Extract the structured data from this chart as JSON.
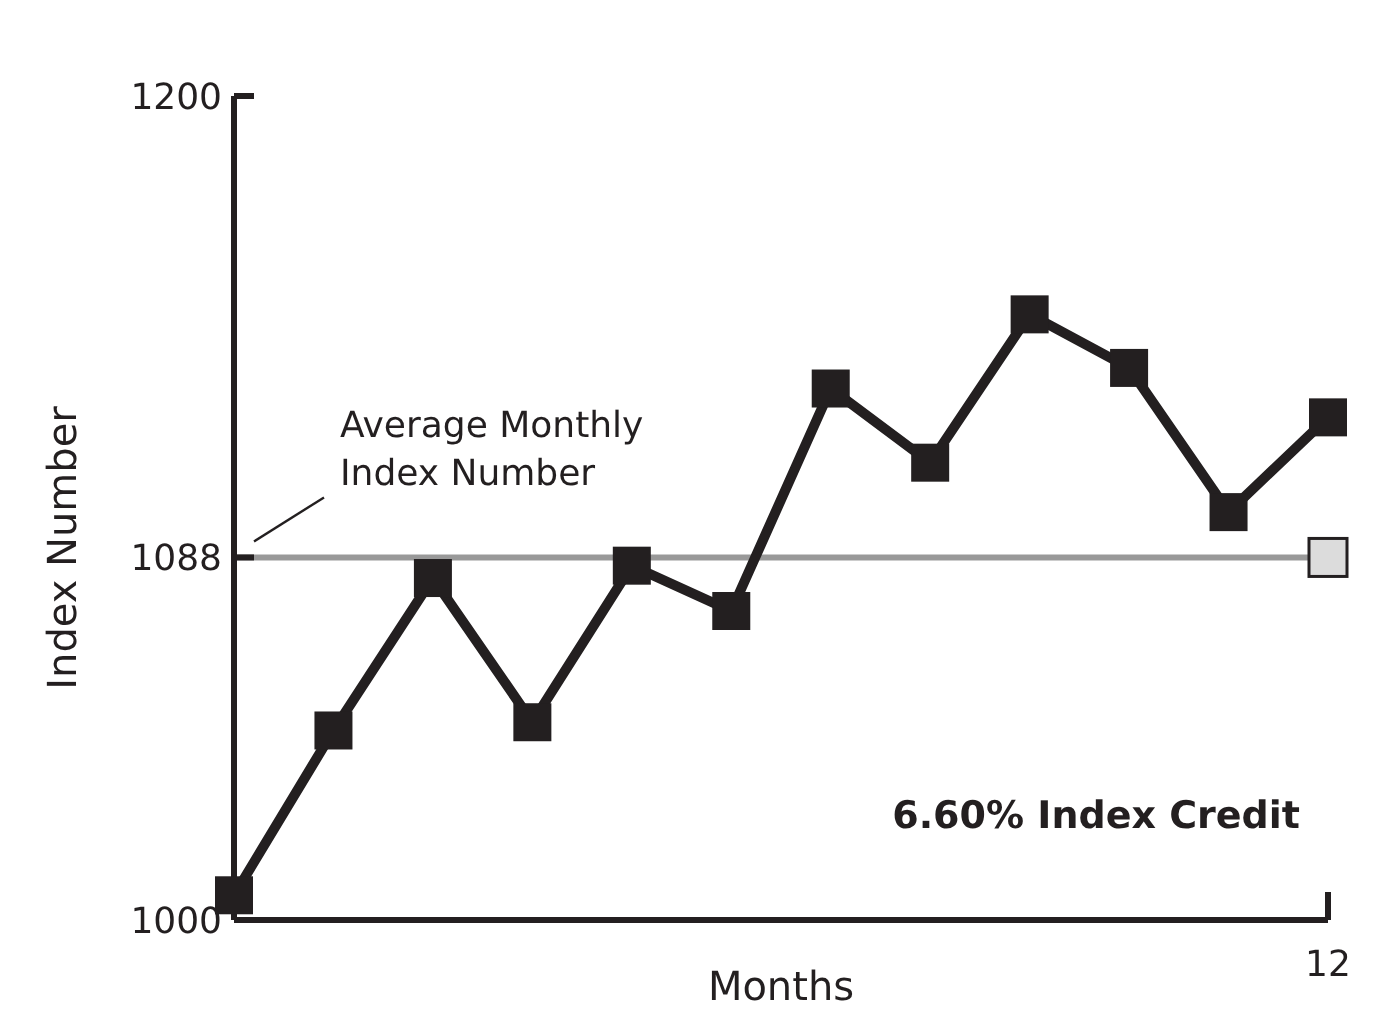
{
  "chart_data": {
    "type": "line",
    "xlabel": "Months",
    "ylabel": "Index Number",
    "categories": [
      null,
      null,
      null,
      null,
      null,
      null,
      null,
      null,
      null,
      null,
      null,
      "12"
    ],
    "ylim": [
      1000,
      1200
    ],
    "yticks": [
      1000,
      1088,
      1200
    ],
    "marker": "square",
    "line_style": "solid",
    "grid": false,
    "series": [
      {
        "color": "#231f20",
        "values": [
          1006,
          1046,
          1083,
          1048,
          1086,
          1075,
          1129,
          1111,
          1147,
          1134,
          1099,
          1122
        ]
      },
      {
        "type": "scatter",
        "color": "#dcdcdc",
        "x": [
          "12"
        ],
        "values": [
          1088
        ]
      }
    ],
    "ref_lines": [
      {
        "axis": "y",
        "value": 1088,
        "label": "Average Monthly Index Number",
        "color": "#999999",
        "line_style": "solid"
      }
    ],
    "annotations": [
      "6.60% Index Credit"
    ]
  }
}
